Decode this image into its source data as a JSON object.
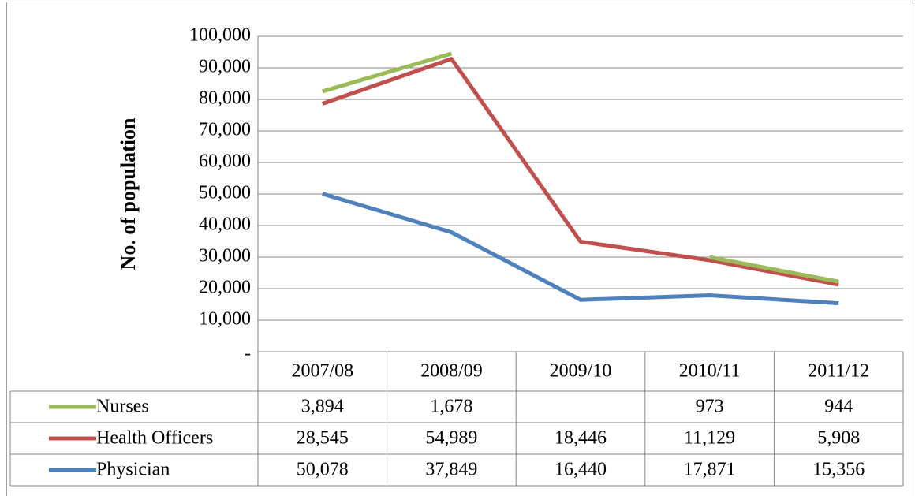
{
  "chart_data": {
    "type": "line",
    "stacked": true,
    "ylabel": "No. of population",
    "categories": [
      "2007/08",
      "2008/09",
      "2009/10",
      "2010/11",
      "2011/12"
    ],
    "series": [
      {
        "name": "Nurses",
        "color": "#9bbb59",
        "values": [
          3894,
          1678,
          null,
          973,
          944
        ],
        "value_labels": [
          "3,894",
          "1,678",
          null,
          "973",
          "944"
        ]
      },
      {
        "name": "Health Officers",
        "color": "#c0504d",
        "values": [
          28545,
          54989,
          18446,
          11129,
          5908
        ],
        "value_labels": [
          "28,545",
          "54,989",
          "18,446",
          "11,129",
          "5,908"
        ]
      },
      {
        "name": "Physician",
        "color": "#4f81bd",
        "values": [
          50078,
          37849,
          16440,
          17871,
          15356
        ],
        "value_labels": [
          "50,078",
          "37,849",
          "16,440",
          "17,871",
          "15,356"
        ]
      }
    ],
    "ylim": [
      0,
      100000
    ],
    "yticks": [
      {
        "value": 0,
        "label": "-"
      },
      {
        "value": 10000,
        "label": "10,000"
      },
      {
        "value": 20000,
        "label": "20,000"
      },
      {
        "value": 30000,
        "label": "30,000"
      },
      {
        "value": 40000,
        "label": "40,000"
      },
      {
        "value": 50000,
        "label": "50,000"
      },
      {
        "value": 60000,
        "label": "60,000"
      },
      {
        "value": 70000,
        "label": "70,000"
      },
      {
        "value": 80000,
        "label": "80,000"
      },
      {
        "value": 90000,
        "label": "90,000"
      },
      {
        "value": 100000,
        "label": "100,000"
      }
    ],
    "grid": true,
    "legend": "table"
  }
}
